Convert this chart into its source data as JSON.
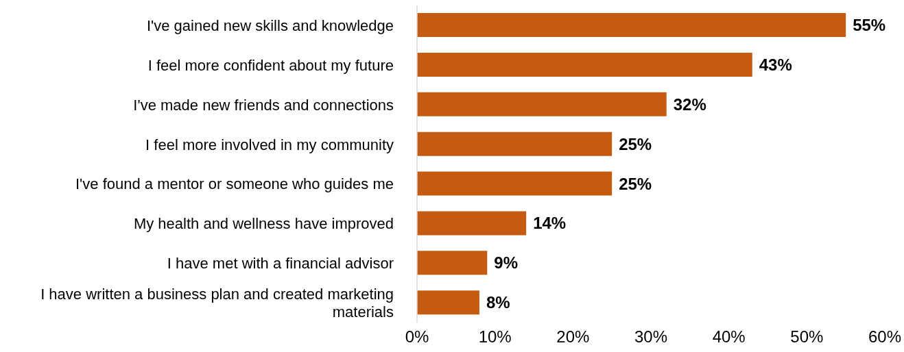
{
  "chart_data": {
    "type": "bar",
    "orientation": "horizontal",
    "categories": [
      "I've gained new skills and knowledge",
      "I feel more confident about my future",
      "I've made new friends and connections",
      "I feel more involved in my community",
      "I've found a mentor or someone who guides me",
      "My health and wellness have improved",
      "I have met with a financial advisor",
      "I have written a business plan and created marketing materials"
    ],
    "values": [
      55,
      43,
      32,
      25,
      25,
      14,
      9,
      8
    ],
    "value_labels": [
      "55%",
      "43%",
      "32%",
      "25%",
      "25%",
      "14%",
      "9%",
      "8%"
    ],
    "color": "#c55a11",
    "xlim": [
      0,
      60
    ],
    "xticks": [
      {
        "value": 0,
        "label": "0%"
      },
      {
        "value": 10,
        "label": "10%"
      },
      {
        "value": 20,
        "label": "20%"
      },
      {
        "value": 30,
        "label": "30%"
      },
      {
        "value": 40,
        "label": "40%"
      },
      {
        "value": 50,
        "label": "50%"
      },
      {
        "value": 60,
        "label": "60%"
      }
    ],
    "grid": false,
    "legend": false
  }
}
